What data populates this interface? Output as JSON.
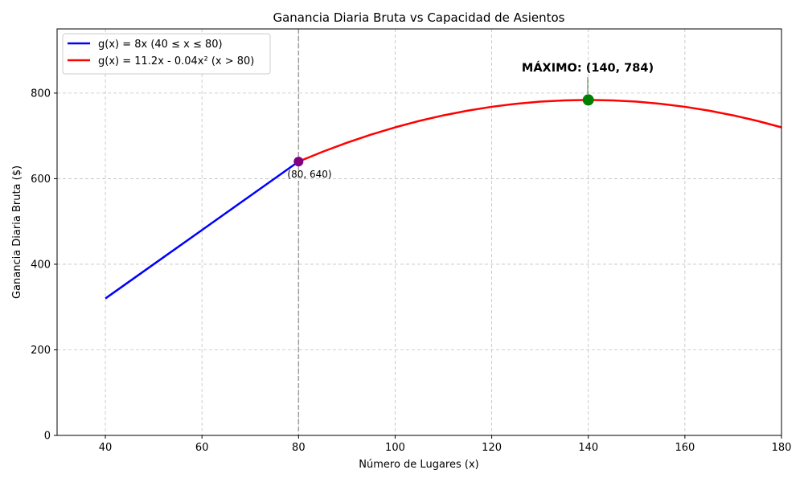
{
  "chart_data": {
    "type": "line",
    "title": "Ganancia Diaria Bruta vs Capacidad de Asientos",
    "xlabel": "Número de Lugares (x)",
    "ylabel": "Ganancia Diaria Bruta ($)",
    "xlim": [
      30,
      180
    ],
    "ylim": [
      0,
      950
    ],
    "x_ticks": [
      40,
      60,
      80,
      100,
      120,
      140,
      160,
      180
    ],
    "y_ticks": [
      0,
      200,
      400,
      600,
      800
    ],
    "grid": true,
    "legend_position": "top-left",
    "series": [
      {
        "name": "g(x) = 8x (40 ≤ x ≤ 80)",
        "color": "#0000ff",
        "x": [
          40,
          50,
          60,
          70,
          80
        ],
        "y": [
          320,
          400,
          480,
          560,
          640
        ]
      },
      {
        "name": "g(x) = 11.2x - 0.04x² (x > 80)",
        "color": "#ff0000",
        "x": [
          80,
          85,
          90,
          95,
          100,
          105,
          110,
          115,
          120,
          125,
          130,
          135,
          140,
          145,
          150,
          155,
          160,
          165,
          170,
          175,
          180
        ],
        "y": [
          640,
          663,
          684,
          703,
          720,
          735,
          748,
          759,
          768,
          775,
          780,
          783,
          784,
          783,
          780,
          775,
          768,
          759,
          748,
          735,
          720
        ]
      }
    ],
    "reference_line": {
      "x": 80,
      "color": "#a0a0a0",
      "style": "dashed"
    },
    "points": [
      {
        "x": 80,
        "y": 640,
        "color": "#800080",
        "label": "(80, 640)"
      },
      {
        "x": 140,
        "y": 784,
        "color": "#008000",
        "label": "MÁXIMO: (140, 784)"
      }
    ]
  }
}
